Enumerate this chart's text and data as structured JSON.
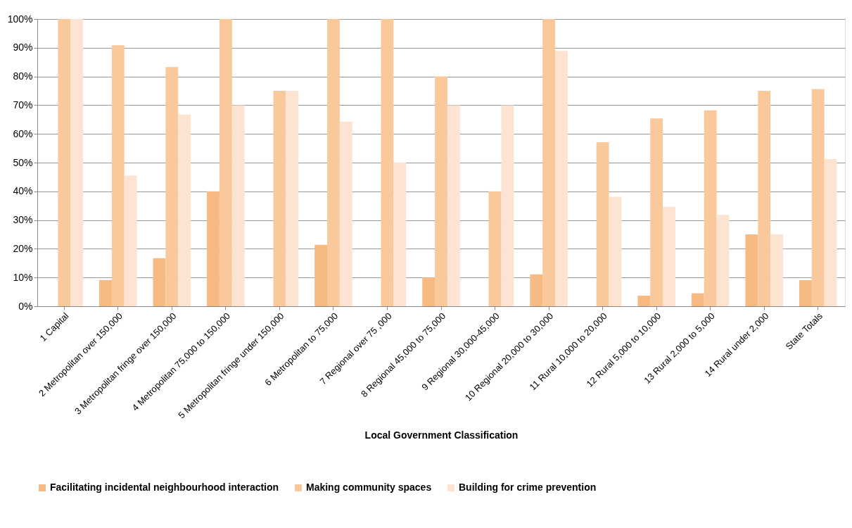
{
  "chart_data": {
    "type": "bar",
    "xlabel": "Local Government Classification",
    "categories": [
      "1 Capital",
      "2 Metropolitan over 150,000",
      "3 Metropolitan fringe over 150,000",
      "4 Metropolitan 75,000 to 150,000",
      "5 Metropolitan fringe  under  150,000",
      "6 Metropolitan to 75,000",
      "7 Regional  over 75 ,000",
      "8 Regional  45,000 to 75,000",
      "9 Regional  30,000-45,000",
      "10 Regional 20,000 to 30,000",
      "11 Rural 10,000 to 20,000",
      "12 Rural 5,000 to  10,000",
      "13 Rural 2,000 to 5,000",
      "14 Rural under 2,000",
      "State Totals"
    ],
    "series": [
      {
        "name": "Facilitating incidental neighbourhood interaction",
        "color": "#f7ba82",
        "values": [
          0,
          9.1,
          16.7,
          40,
          0,
          21.4,
          0,
          10,
          0,
          11.1,
          0,
          3.7,
          4.5,
          25,
          9.1
        ]
      },
      {
        "name": "Making community spaces",
        "color": "#f9c99c",
        "values": [
          100,
          90.9,
          83.3,
          100,
          75,
          100,
          100,
          80,
          40,
          100,
          57.1,
          65.4,
          68.2,
          75,
          75.6
        ]
      },
      {
        "name": "Building for crime prevention",
        "color": "#fde4d2",
        "values": [
          100,
          45.5,
          66.7,
          70,
          75,
          64.3,
          50,
          70,
          70,
          88.9,
          38.1,
          34.6,
          31.8,
          25,
          51.2
        ]
      }
    ],
    "ylim": [
      0,
      100
    ],
    "yticks": [
      {
        "value": 0,
        "label": "0%"
      },
      {
        "value": 10,
        "label": "10%"
      },
      {
        "value": 20,
        "label": "20%"
      },
      {
        "value": 30,
        "label": "30%"
      },
      {
        "value": 40,
        "label": "40%"
      },
      {
        "value": 50,
        "label": "50%"
      },
      {
        "value": 60,
        "label": "60%"
      },
      {
        "value": 70,
        "label": "70%"
      },
      {
        "value": 80,
        "label": "80%"
      },
      {
        "value": 90,
        "label": "90%"
      },
      {
        "value": 100,
        "label": "100%"
      }
    ],
    "grid": "y",
    "legend": "bottom"
  }
}
